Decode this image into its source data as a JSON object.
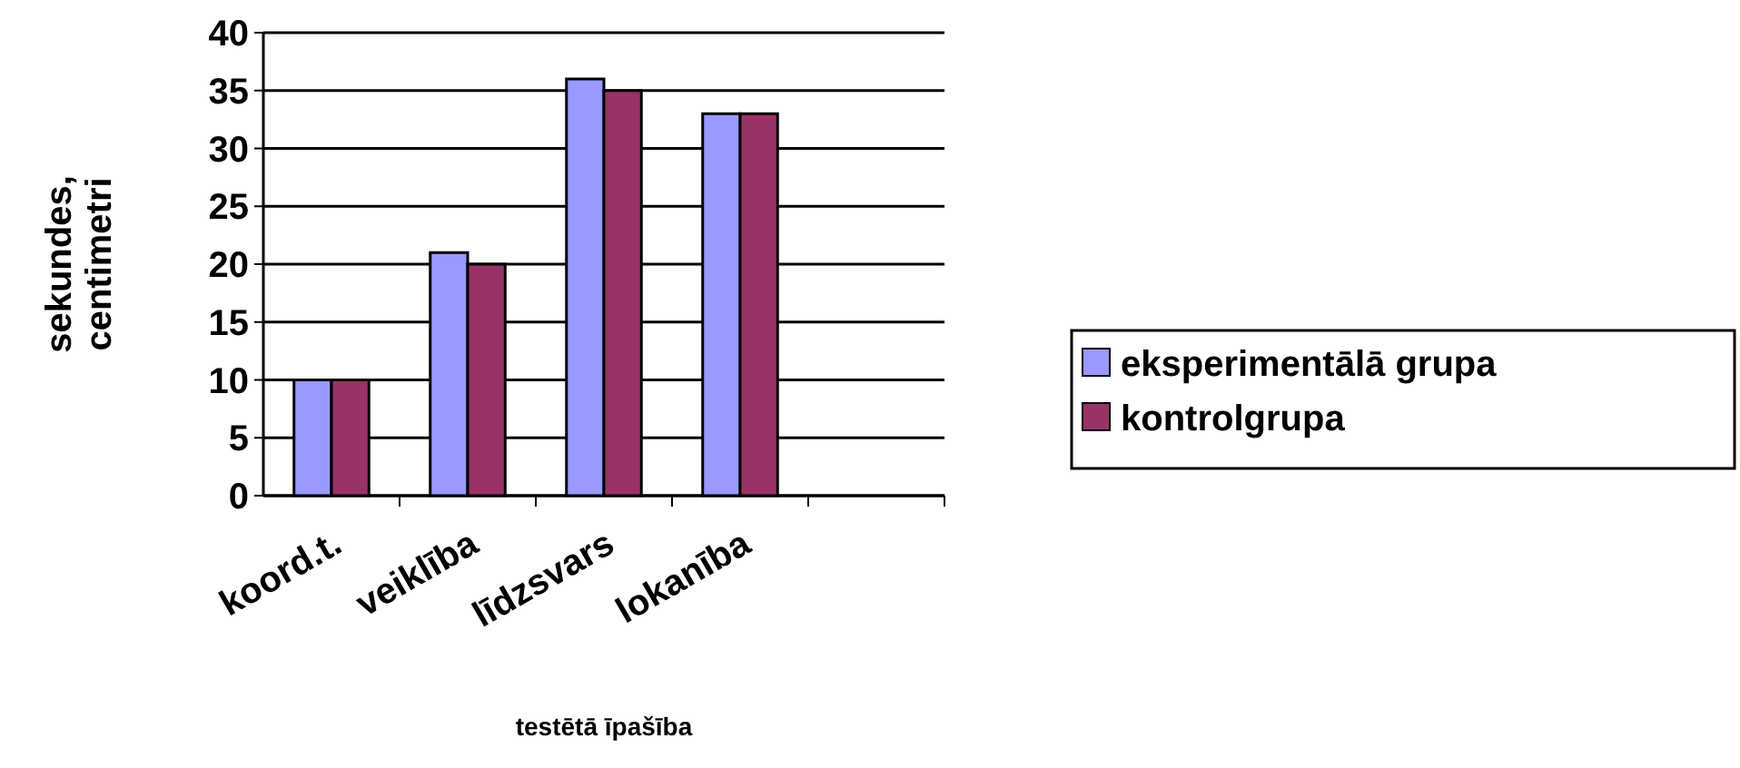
{
  "chart_data": {
    "type": "bar",
    "xlabel": "testētā īpašība",
    "ylabel": "sekundes, centimetri",
    "categories": [
      "koord.t.",
      "veiklība",
      "līdzsvars",
      "lokanība",
      null
    ],
    "series": [
      {
        "name": "eksperimentālā grupa",
        "color": "#9999ff",
        "values": [
          10,
          21,
          36,
          33,
          null
        ]
      },
      {
        "name": "kontrolgrupa",
        "color": "#993366",
        "values": [
          10,
          20,
          35,
          33,
          null
        ]
      }
    ],
    "ylim": [
      0,
      40
    ],
    "yticks": [
      0,
      5,
      10,
      15,
      20,
      25,
      30,
      35,
      40
    ],
    "grid": "y",
    "legend": "right"
  }
}
